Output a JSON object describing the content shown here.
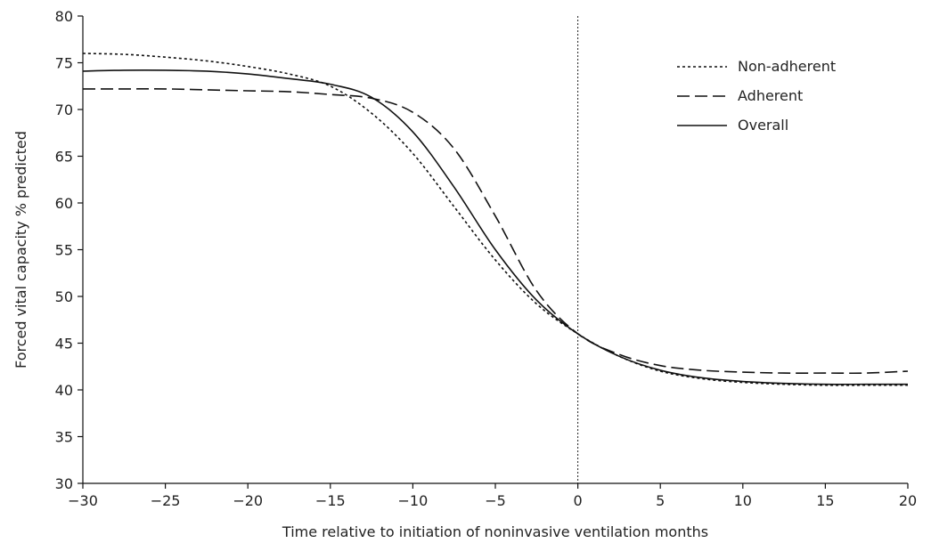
{
  "chart_data": {
    "type": "line",
    "title": "",
    "xlabel": "Time relative to initiation of noninvasive ventilation months",
    "ylabel": "Forced vital capacity % predicted",
    "xlim": [
      -30,
      20
    ],
    "ylim": [
      30,
      80
    ],
    "x_ticks": [
      -30,
      -25,
      -20,
      -15,
      -10,
      -5,
      0,
      5,
      10,
      15,
      20
    ],
    "x_tick_labels": [
      "−30",
      "−25",
      "−20",
      "−15",
      "−10",
      "−5",
      "0",
      "5",
      "10",
      "15",
      "20"
    ],
    "y_ticks": [
      30,
      35,
      40,
      45,
      50,
      55,
      60,
      65,
      70,
      75,
      80
    ],
    "y_tick_labels": [
      "30",
      "35",
      "40",
      "45",
      "50",
      "55",
      "60",
      "65",
      "70",
      "75",
      "80"
    ],
    "grid": false,
    "legend_position": "top-right",
    "reference_line": {
      "x": 0,
      "style": "dotted"
    },
    "series": [
      {
        "name": "Non-adherent",
        "style": "dotted",
        "color": "#111111",
        "x": [
          -30,
          -27.5,
          -25,
          -22.5,
          -20,
          -17.5,
          -15,
          -12.5,
          -10,
          -7.5,
          -5,
          -2.5,
          0,
          2.5,
          5,
          7.5,
          10,
          12.5,
          15,
          17.5,
          20
        ],
        "y": [
          76.0,
          75.9,
          75.6,
          75.2,
          74.6,
          73.8,
          72.5,
          69.6,
          65.3,
          59.6,
          53.9,
          49.2,
          46.0,
          43.6,
          42.0,
          41.2,
          40.8,
          40.6,
          40.5,
          40.5,
          40.5
        ]
      },
      {
        "name": "Adherent",
        "style": "dashed",
        "color": "#111111",
        "x": [
          -30,
          -27.5,
          -25,
          -22.5,
          -20,
          -17.5,
          -15,
          -12.5,
          -10,
          -7.5,
          -5,
          -2.5,
          0,
          2.5,
          5,
          7.5,
          10,
          12.5,
          15,
          17.5,
          20
        ],
        "y": [
          72.2,
          72.2,
          72.2,
          72.1,
          72.0,
          71.9,
          71.6,
          71.2,
          69.7,
          65.8,
          58.6,
          50.6,
          46.0,
          43.8,
          42.6,
          42.1,
          41.9,
          41.8,
          41.8,
          41.8,
          42.0
        ]
      },
      {
        "name": "Overall",
        "style": "solid",
        "color": "#111111",
        "x": [
          -30,
          -27.5,
          -25,
          -22.5,
          -20,
          -17.5,
          -15,
          -12.5,
          -10,
          -7.5,
          -5,
          -2.5,
          0,
          2.5,
          5,
          7.5,
          10,
          12.5,
          15,
          17.5,
          20
        ],
        "y": [
          74.1,
          74.2,
          74.2,
          74.1,
          73.8,
          73.3,
          72.7,
          71.3,
          67.6,
          61.7,
          55.0,
          49.6,
          46.0,
          43.6,
          42.1,
          41.3,
          40.9,
          40.7,
          40.6,
          40.6,
          40.6
        ]
      }
    ]
  }
}
